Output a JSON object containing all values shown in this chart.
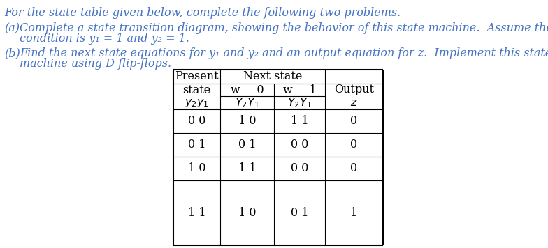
{
  "background_color": "#ffffff",
  "text_color": "#4472c4",
  "intro_line": "For the state table given below, complete the following two problems.",
  "part_a_label": "(a)",
  "part_a_line1": "Complete a state transition diagram, showing the behavior of this state machine.  Assume the initial",
  "part_a_line2": "condition is y₁ = 1 and y₂ = 1.",
  "part_b_label": "(b)",
  "part_b_line1": "Find the next state equations for y₁ and y₂ and an output equation for z.  Implement this state",
  "part_b_line2": "machine using D flip-flops.",
  "table_rows": [
    [
      "0 0",
      "1 0",
      "1 1",
      "0"
    ],
    [
      "0 1",
      "0 1",
      "0 0",
      "0"
    ],
    [
      "1 0",
      "1 1",
      "0 0",
      "0"
    ],
    [
      "1 1",
      "1 0",
      "0 1",
      "1"
    ]
  ],
  "font_size_body": 11.5,
  "font_size_table": 11.5
}
